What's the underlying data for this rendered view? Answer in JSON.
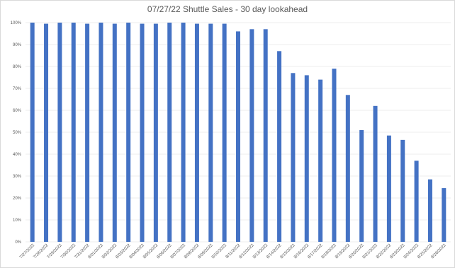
{
  "chart_data": {
    "type": "bar",
    "title": "07/27/22 Shuttle Sales - 30 day lookahead",
    "xlabel": "",
    "ylabel": "",
    "ylim": [
      0,
      100
    ],
    "yticks": [
      "0%",
      "10%",
      "20%",
      "30%",
      "40%",
      "50%",
      "60%",
      "70%",
      "80%",
      "90%",
      "100%"
    ],
    "ytick_values": [
      0,
      10,
      20,
      30,
      40,
      50,
      60,
      70,
      80,
      90,
      100
    ],
    "grid": true,
    "legend": "none",
    "bar_color": "#4472C4",
    "categories": [
      "7/27/2022",
      "7/28/2022",
      "7/29/2022",
      "7/30/2022",
      "7/31/2022",
      "8/01/2022",
      "8/02/2022",
      "8/03/2022",
      "8/04/2022",
      "8/05/2022",
      "8/06/2022",
      "8/07/2022",
      "8/08/2022",
      "8/09/2022",
      "8/10/2022",
      "8/11/2022",
      "8/12/2022",
      "8/13/2022",
      "8/14/2022",
      "8/15/2022",
      "8/16/2022",
      "8/17/2022",
      "8/18/2022",
      "8/19/2022",
      "8/20/2022",
      "8/21/2022",
      "8/22/2022",
      "8/23/2022",
      "8/24/2022",
      "8/25/2022",
      "8/26/2022"
    ],
    "values": [
      100,
      99.5,
      100,
      100,
      99.5,
      100,
      99.5,
      100,
      99.5,
      99.5,
      100,
      100,
      99.5,
      99.5,
      99.5,
      96,
      97,
      97,
      87,
      77,
      76,
      74,
      79,
      67,
      51,
      62,
      48.5,
      46.5,
      37,
      28.5,
      24.5
    ]
  }
}
